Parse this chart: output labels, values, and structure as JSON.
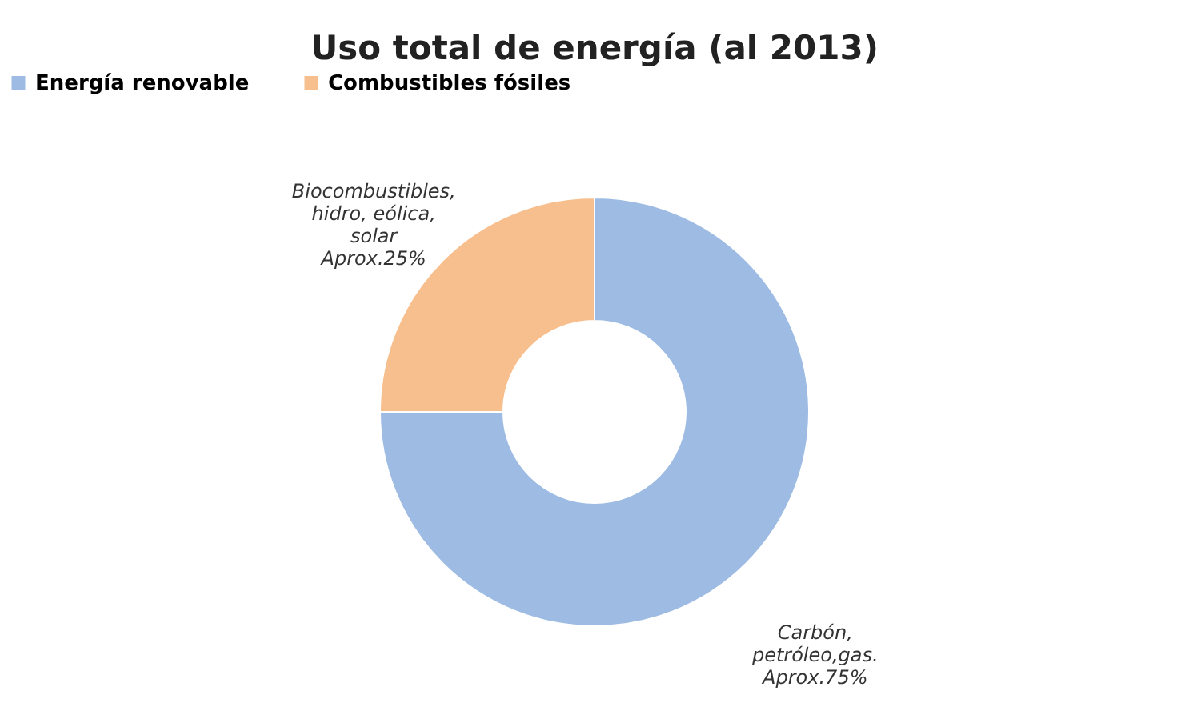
{
  "chart_data": {
    "type": "donut",
    "title": "Uso total de energía (al 2013)",
    "categories": [
      "Energía renovable",
      "Combustibles fósiles"
    ],
    "values": [
      75,
      25
    ],
    "colors": [
      "#9dbbe3",
      "#f8bf8e"
    ],
    "value_labels": [
      "Carbón,\npetróleo,gas.\nAprox.75%",
      "Biocombustibles,\nhidro, eólica,\nsolar\nAprox.25%"
    ],
    "legend": "top"
  }
}
